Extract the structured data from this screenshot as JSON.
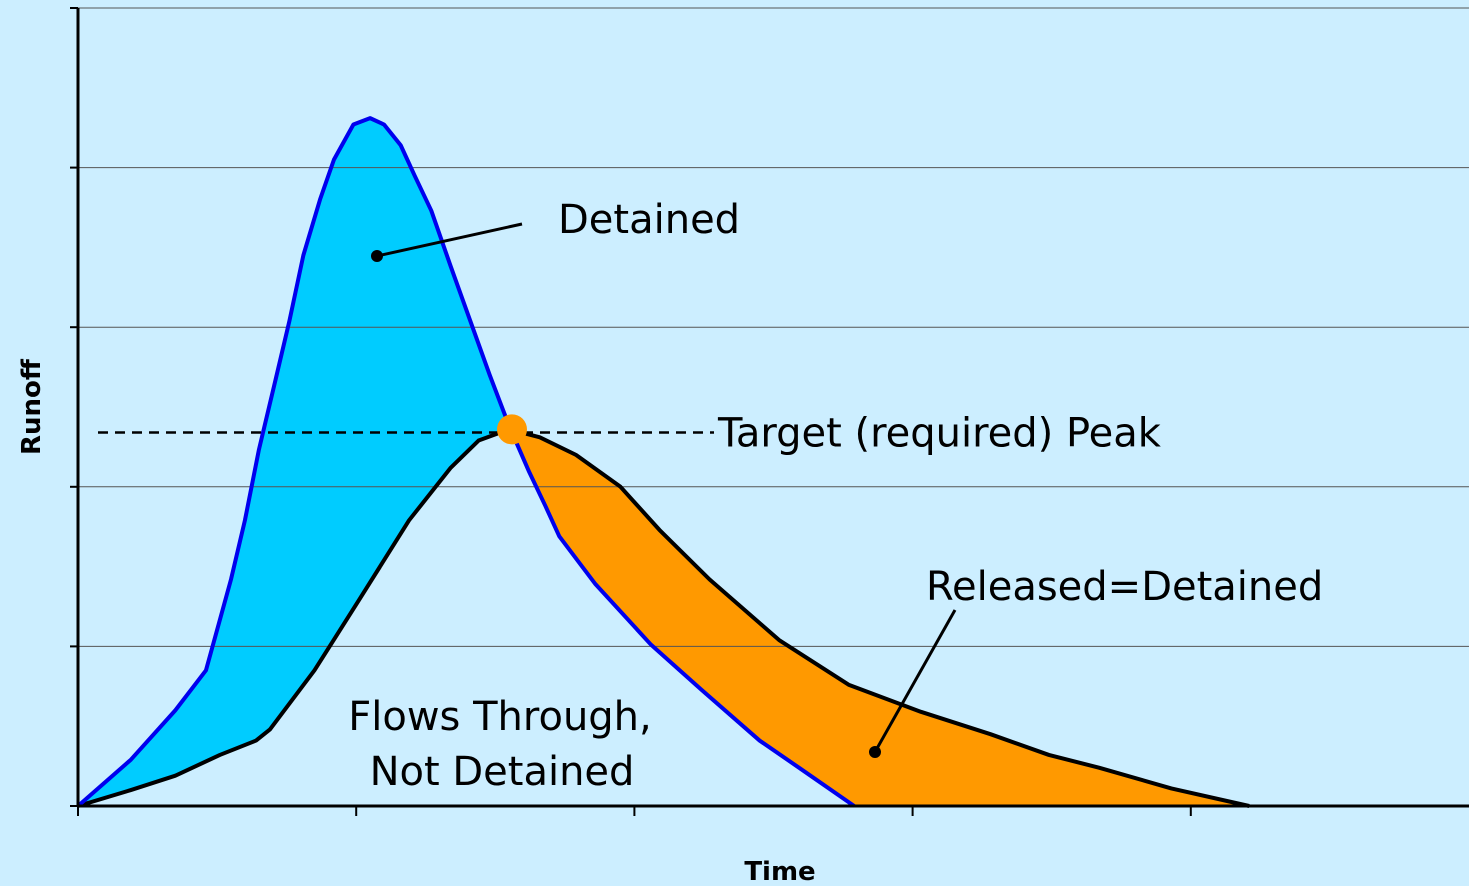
{
  "chart_data": {
    "type": "line",
    "x_label": "Time",
    "y_label": "Runoff",
    "xlim": [
      0,
      5
    ],
    "ylim": [
      0,
      5
    ],
    "xticks": [
      0,
      1,
      2,
      3,
      4
    ],
    "yticks": [
      0,
      1,
      2,
      3,
      4,
      5
    ],
    "grid": true,
    "series": [
      {
        "color": "#0000ee",
        "fill": "#00ccff",
        "x": [
          0,
          0.19,
          0.35,
          0.46,
          0.49,
          0.55,
          0.6,
          0.65,
          0.71,
          0.76,
          0.81,
          0.87,
          0.92,
          0.99,
          1.05,
          1.1,
          1.16,
          1.21,
          1.27,
          1.34,
          1.41,
          1.48,
          1.55,
          1.62,
          1.68,
          1.73,
          1.86,
          2.06,
          2.24,
          2.45,
          2.6,
          2.79
        ],
        "values": [
          0,
          0.29,
          0.6,
          0.85,
          1.04,
          1.42,
          1.79,
          2.23,
          2.67,
          3.04,
          3.45,
          3.8,
          4.05,
          4.27,
          4.31,
          4.27,
          4.14,
          3.95,
          3.73,
          3.38,
          3.04,
          2.7,
          2.38,
          2.1,
          1.88,
          1.69,
          1.39,
          1.01,
          0.73,
          0.41,
          0.23,
          0
        ]
      },
      {
        "color": "#000000",
        "fill": "#ff9900",
        "x": [
          0,
          0.19,
          0.35,
          0.51,
          0.64,
          0.69,
          0.85,
          1.01,
          1.19,
          1.34,
          1.44,
          1.55,
          1.66,
          1.79,
          1.95,
          2.09,
          2.27,
          2.52,
          2.77,
          3.03,
          3.28,
          3.49,
          3.67,
          3.93,
          4.21
        ],
        "values": [
          0,
          0.1,
          0.19,
          0.32,
          0.41,
          0.48,
          0.85,
          1.29,
          1.79,
          2.12,
          2.29,
          2.36,
          2.31,
          2.2,
          2.0,
          1.73,
          1.42,
          1.04,
          0.76,
          0.59,
          0.45,
          0.32,
          0.24,
          0.11,
          0
        ]
      }
    ],
    "target": {
      "label": "Target (required) Peak",
      "value": 2.34
    },
    "peak_point": {
      "x": 1.56,
      "y": 2.36,
      "color": "#ff9900"
    },
    "annotations": [
      "Detained",
      "Released=Detained",
      "Flows Through,",
      "Not Detained"
    ]
  }
}
